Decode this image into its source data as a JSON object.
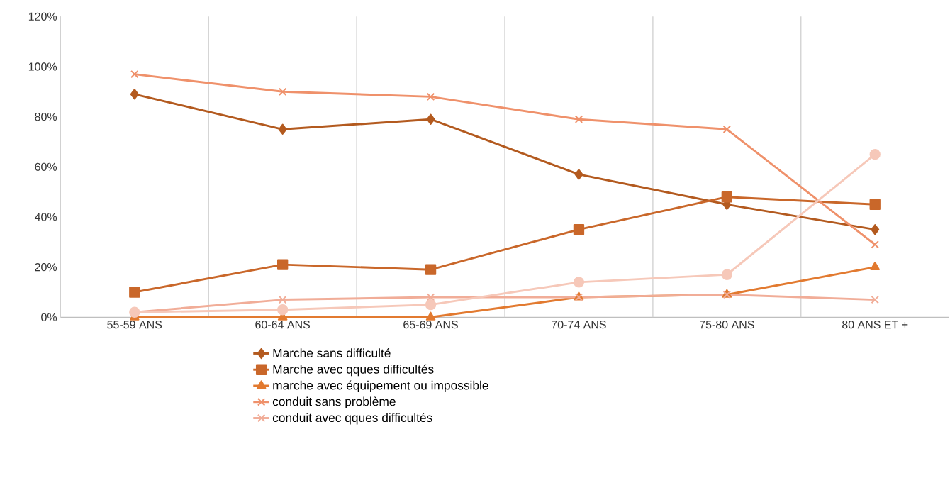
{
  "chart_data": {
    "type": "line",
    "categories": [
      "55-59 ANS",
      "60-64 ANS",
      "65-69 ANS",
      "70-74 ANS",
      "75-80 ANS",
      "80 ANS ET +"
    ],
    "series": [
      {
        "name": "Marche sans difficulté",
        "color": "#b35a1f",
        "marker": "diamond",
        "values": [
          89,
          75,
          79,
          57,
          45,
          35
        ]
      },
      {
        "name": "Marche avec qques difficultés",
        "color": "#c9672a",
        "marker": "square",
        "values": [
          10,
          21,
          19,
          35,
          48,
          45
        ]
      },
      {
        "name": "marche avec équipement ou impossible",
        "color": "#e27a30",
        "marker": "triangle",
        "values": [
          0,
          0,
          0,
          8,
          9,
          20
        ]
      },
      {
        "name": "conduit sans problème",
        "color": "#ef916b",
        "marker": "cross",
        "values": [
          97,
          90,
          88,
          79,
          75,
          29
        ]
      },
      {
        "name": "conduit avec qques difficultés",
        "color": "#f1ad98",
        "marker": "cross",
        "values": [
          2,
          7,
          8,
          8,
          9,
          7
        ]
      },
      {
        "color": "#f6c8b9",
        "marker": "circle",
        "values": [
          2,
          3,
          5,
          14,
          17,
          65
        ]
      }
    ],
    "ylim": [
      0,
      120
    ],
    "yticks": [
      {
        "value": 0,
        "label": "0%"
      },
      {
        "value": 20,
        "label": "20%"
      },
      {
        "value": 40,
        "label": "40%"
      },
      {
        "value": 60,
        "label": "60%"
      },
      {
        "value": 80,
        "label": "80%"
      },
      {
        "value": 100,
        "label": "100%"
      },
      {
        "value": 120,
        "label": "120%"
      }
    ],
    "grid": "x",
    "legend": "bottom"
  }
}
